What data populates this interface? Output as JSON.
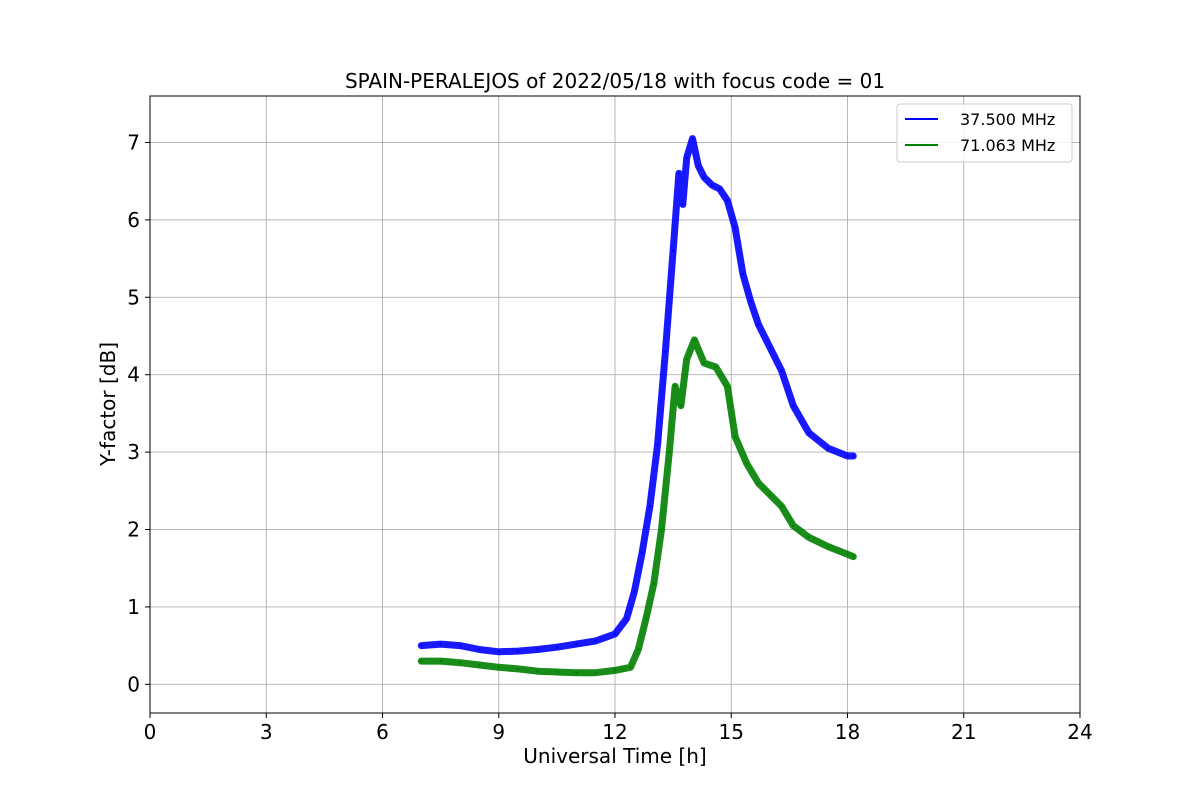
{
  "chart_data": {
    "type": "line",
    "title": "SPAIN-PERALEJOS of 2022/05/18 with focus code = 01",
    "xlabel": "Universal Time [h]",
    "ylabel": "Y-factor [dB]",
    "xlim": [
      0,
      24
    ],
    "ylim": [
      -0.37,
      7.6
    ],
    "xticks": [
      0,
      3,
      6,
      9,
      12,
      15,
      18,
      21,
      24
    ],
    "yticks": [
      0,
      1,
      2,
      3,
      4,
      5,
      6,
      7
    ],
    "grid": true,
    "legend_position": "top-right",
    "series": [
      {
        "name": "37.500 MHz",
        "color": "#0000ff",
        "points": [
          [
            7.0,
            0.5
          ],
          [
            7.5,
            0.52
          ],
          [
            8.0,
            0.5
          ],
          [
            8.5,
            0.45
          ],
          [
            9.0,
            0.42
          ],
          [
            9.5,
            0.43
          ],
          [
            10.0,
            0.45
          ],
          [
            10.5,
            0.48
          ],
          [
            11.0,
            0.52
          ],
          [
            11.5,
            0.56
          ],
          [
            12.0,
            0.65
          ],
          [
            12.3,
            0.85
          ],
          [
            12.5,
            1.2
          ],
          [
            12.7,
            1.7
          ],
          [
            12.9,
            2.3
          ],
          [
            13.1,
            3.1
          ],
          [
            13.3,
            4.3
          ],
          [
            13.5,
            5.6
          ],
          [
            13.65,
            6.6
          ],
          [
            13.75,
            6.2
          ],
          [
            13.85,
            6.8
          ],
          [
            14.0,
            7.05
          ],
          [
            14.15,
            6.7
          ],
          [
            14.3,
            6.55
          ],
          [
            14.5,
            6.45
          ],
          [
            14.7,
            6.4
          ],
          [
            14.9,
            6.25
          ],
          [
            15.1,
            5.9
          ],
          [
            15.3,
            5.3
          ],
          [
            15.5,
            4.95
          ],
          [
            15.7,
            4.65
          ],
          [
            16.0,
            4.35
          ],
          [
            16.3,
            4.05
          ],
          [
            16.6,
            3.6
          ],
          [
            17.0,
            3.25
          ],
          [
            17.5,
            3.05
          ],
          [
            18.0,
            2.95
          ],
          [
            18.15,
            2.95
          ]
        ]
      },
      {
        "name": "71.063 MHz",
        "color": "#008000",
        "points": [
          [
            7.0,
            0.3
          ],
          [
            7.5,
            0.3
          ],
          [
            8.0,
            0.28
          ],
          [
            8.5,
            0.25
          ],
          [
            9.0,
            0.22
          ],
          [
            9.5,
            0.2
          ],
          [
            10.0,
            0.17
          ],
          [
            10.5,
            0.16
          ],
          [
            11.0,
            0.15
          ],
          [
            11.5,
            0.15
          ],
          [
            12.0,
            0.18
          ],
          [
            12.4,
            0.22
          ],
          [
            12.6,
            0.45
          ],
          [
            12.8,
            0.85
          ],
          [
            13.0,
            1.3
          ],
          [
            13.2,
            2.0
          ],
          [
            13.4,
            3.0
          ],
          [
            13.55,
            3.85
          ],
          [
            13.7,
            3.6
          ],
          [
            13.85,
            4.2
          ],
          [
            14.05,
            4.45
          ],
          [
            14.3,
            4.15
          ],
          [
            14.6,
            4.1
          ],
          [
            14.9,
            3.85
          ],
          [
            15.1,
            3.2
          ],
          [
            15.4,
            2.85
          ],
          [
            15.7,
            2.6
          ],
          [
            16.0,
            2.45
          ],
          [
            16.3,
            2.3
          ],
          [
            16.6,
            2.05
          ],
          [
            17.0,
            1.9
          ],
          [
            17.5,
            1.78
          ],
          [
            18.0,
            1.68
          ],
          [
            18.15,
            1.65
          ]
        ]
      }
    ]
  }
}
